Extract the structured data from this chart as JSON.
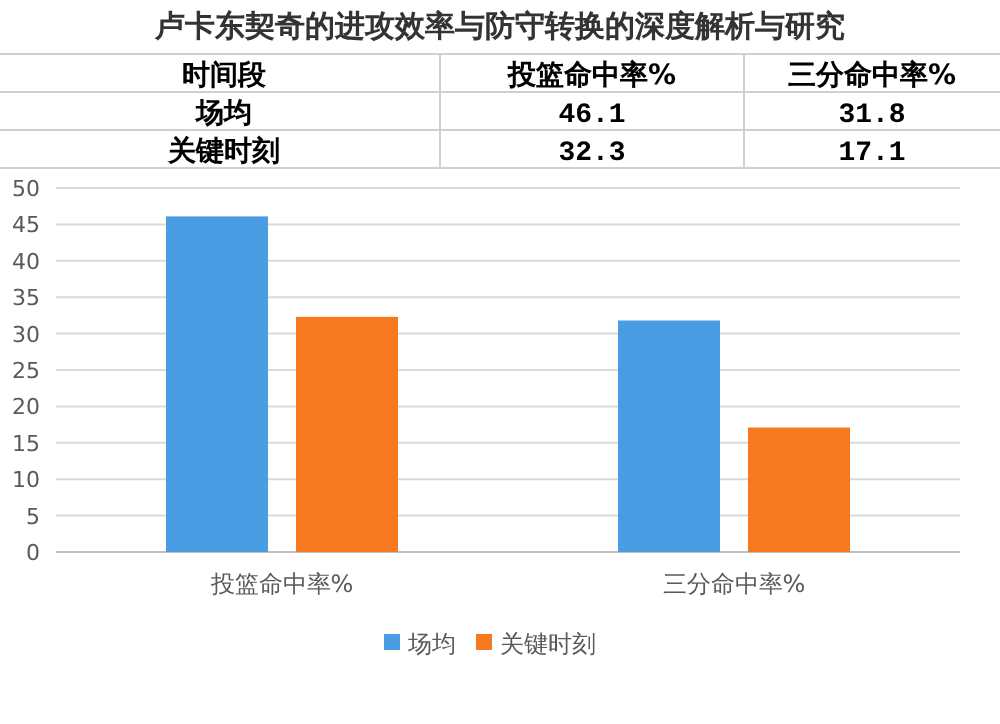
{
  "chart_data": {
    "type": "bar",
    "title": "卢卡东契奇的进攻效率与防守转换的深度解析与研究",
    "categories": [
      "投篮命中率%",
      "三分命中率%"
    ],
    "series": [
      {
        "name": "场均",
        "color": "#4a9de3",
        "values": [
          46.1,
          31.8
        ]
      },
      {
        "name": "关键时刻",
        "color": "#f7791f",
        "values": [
          32.3,
          17.1
        ]
      }
    ],
    "annotations": [
      "时间段",
      "46.1",
      "31.8",
      "32.3",
      "17.1"
    ],
    "ylim": [
      0,
      50
    ],
    "yticks": [
      0,
      5,
      10,
      15,
      20,
      25,
      30,
      35,
      40,
      45,
      50
    ],
    "grid": "y",
    "legend": "bottom"
  }
}
